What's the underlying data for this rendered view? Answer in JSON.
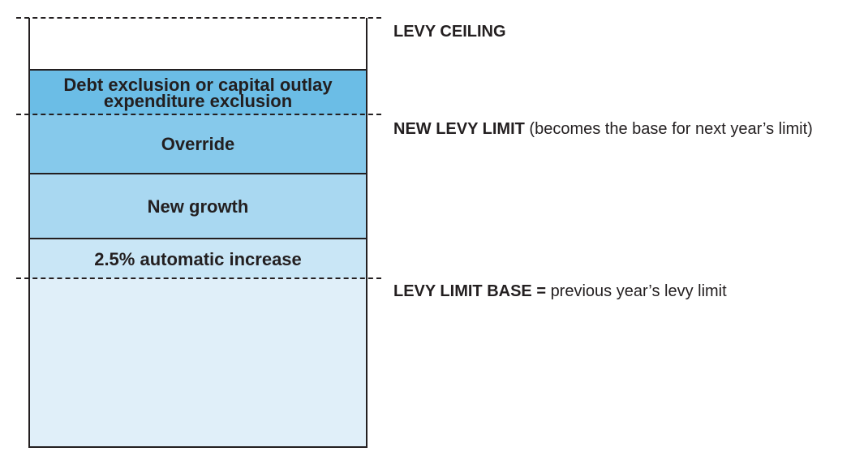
{
  "bands": {
    "debt_exclusion": "Debt exclusion or capital outlay expenditure exclusion",
    "override": "Override",
    "new_growth": "New growth",
    "automatic_increase": "2.5% automatic increase"
  },
  "labels": {
    "levy_ceiling": "LEVY CEILING",
    "new_levy_limit_bold": "NEW LEVY LIMIT",
    "new_levy_limit_note": "(becomes the base for next year’s limit)",
    "levy_limit_base_bold": "LEVY LIMIT BASE =",
    "levy_limit_base_note": "previous year’s levy limit"
  },
  "colors": {
    "debt_exclusion": "#6bbde6",
    "override": "#86c9eb",
    "new_growth": "#a9d8f1",
    "automatic_increase": "#c9e6f6",
    "levy_limit_base": "#e0eff9"
  }
}
